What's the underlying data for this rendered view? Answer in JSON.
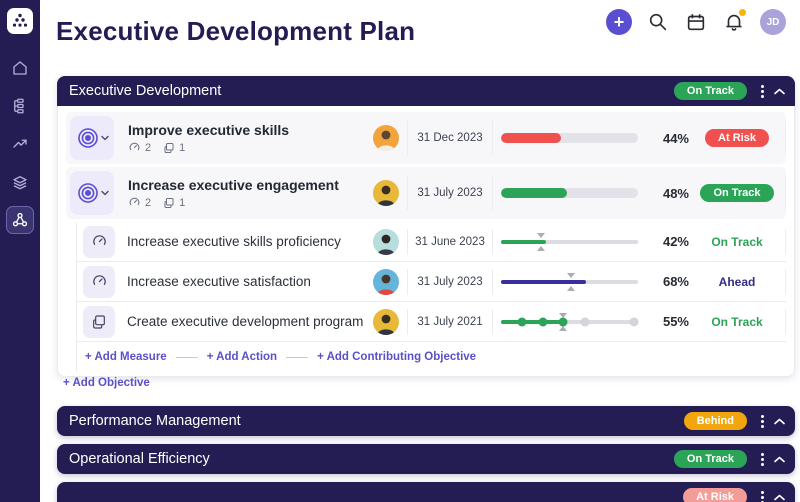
{
  "app": {
    "title": "Executive Development Plan",
    "avatar_initials": "JD",
    "accent_color": "#5b4fd1",
    "notification_color": "#f5b50a"
  },
  "add_objective_label": "+ Add Objective",
  "sections": [
    {
      "title": "Executive Development",
      "status": "On Track",
      "badge_bg": "#2ca458",
      "footer_links": [
        "+ Add Measure",
        "+ Add Action",
        "+ Add Contributing Objective"
      ],
      "rows": [
        {
          "type": "objective",
          "title": "Improve executive skills",
          "measure_count": "2",
          "action_count": "1",
          "date": "31 Dec 2023",
          "percent": "44%",
          "value": 44,
          "status": "At Risk",
          "bar_color": "#f0504e",
          "badge_bg": "#f0504e",
          "avatar": {
            "bg": "#f2a33c",
            "shirt": "#f3efe8"
          }
        },
        {
          "type": "objective",
          "title": "Increase executive engagement",
          "measure_count": "2",
          "action_count": "1",
          "date": "31 July 2023",
          "percent": "48%",
          "value": 48,
          "status": "On Track",
          "bar_color": "#2ca458",
          "badge_bg": "#2ca458",
          "avatar": {
            "bg": "#e8b838",
            "shirt": "#2e3440"
          }
        },
        {
          "type": "measure",
          "title": "Increase executive skills proficiency",
          "date": "31 June 2023",
          "percent": "42%",
          "fill": 33,
          "marker": 29,
          "status": "On Track",
          "bar_color": "#2ca458",
          "status_color": "#2ca458",
          "avatar": {
            "bg": "#b7dedd",
            "shirt": "#3a3a46"
          }
        },
        {
          "type": "measure",
          "title": "Increase executive satisfaction",
          "date": "31 July 2023",
          "percent": "68%",
          "fill": 62,
          "marker": 51,
          "status": "Ahead",
          "bar_color": "#37309b",
          "status_color": "#332c85",
          "avatar": {
            "bg": "#64b5d9",
            "shirt": "#e0493f"
          }
        },
        {
          "type": "action",
          "title": "Create executive development program",
          "date": "31 July 2021",
          "percent": "55%",
          "status": "On Track",
          "status_color": "#2ca458",
          "avatar": {
            "bg": "#e8b838",
            "shirt": "#2e3440"
          },
          "milestones": {
            "positions": [
              15,
              31,
              45,
              61,
              97
            ],
            "completed": 3
          },
          "marker": 45
        }
      ]
    },
    {
      "title": "Performance Management",
      "status": "Behind",
      "badge_bg": "#f2a60d"
    },
    {
      "title": "Operational Efficiency",
      "status": "On Track",
      "badge_bg": "#2ca458"
    },
    {
      "title": "",
      "status": "At Risk",
      "badge_bg": "#f49c98"
    }
  ]
}
